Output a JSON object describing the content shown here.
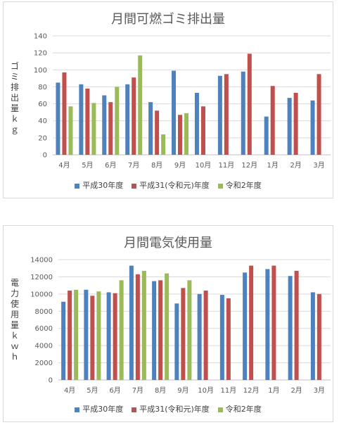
{
  "chart_data": [
    {
      "type": "bar",
      "title": "月間可燃ゴミ排出量",
      "ylabel": "ゴミ排出量ｋｇ",
      "ylim": [
        0,
        140
      ],
      "yticks": [
        0,
        20,
        40,
        60,
        80,
        100,
        120,
        140
      ],
      "grid": true,
      "legend": "bottom",
      "categories": [
        "4月",
        "5月",
        "6月",
        "7月",
        "8月",
        "9月",
        "10月",
        "11月",
        "12月",
        "1月",
        "2月",
        "3月"
      ],
      "series": [
        {
          "name": "平成30年度",
          "color": "#4f81bd",
          "values": [
            85,
            83,
            70,
            83,
            62,
            99,
            73,
            93,
            98,
            45,
            67,
            64
          ]
        },
        {
          "name": "平成31(令和元)年度",
          "color": "#c0504d",
          "values": [
            97,
            78,
            62,
            91,
            52,
            47,
            57,
            95,
            119,
            81,
            73,
            95
          ]
        },
        {
          "name": "令和2年度",
          "color": "#9bbb59",
          "values": [
            57,
            61,
            80,
            117,
            24,
            49,
            null,
            null,
            null,
            null,
            null,
            null
          ]
        }
      ]
    },
    {
      "type": "bar",
      "title": "月間電気使用量",
      "ylabel": "電力使用量ｋｗｈ",
      "ylim": [
        0,
        14000
      ],
      "yticks": [
        0,
        2000,
        4000,
        6000,
        8000,
        10000,
        12000,
        14000
      ],
      "grid": true,
      "legend": "bottom",
      "categories": [
        "4月",
        "5月",
        "6月",
        "7月",
        "8月",
        "9月",
        "10月",
        "11月",
        "12月",
        "1月",
        "2月",
        "3月"
      ],
      "series": [
        {
          "name": "平成30年度",
          "color": "#4f81bd",
          "values": [
            9100,
            10500,
            10200,
            13300,
            11500,
            8900,
            10000,
            9900,
            12500,
            12900,
            12100,
            10200
          ]
        },
        {
          "name": "平成31(令和元)年度",
          "color": "#c0504d",
          "values": [
            10400,
            9800,
            10100,
            12300,
            11600,
            10700,
            10400,
            9500,
            13300,
            13300,
            12700,
            10000
          ]
        },
        {
          "name": "令和2年度",
          "color": "#9bbb59",
          "values": [
            10500,
            10300,
            11600,
            12700,
            12400,
            11600,
            null,
            null,
            null,
            null,
            null,
            null
          ]
        }
      ]
    }
  ]
}
